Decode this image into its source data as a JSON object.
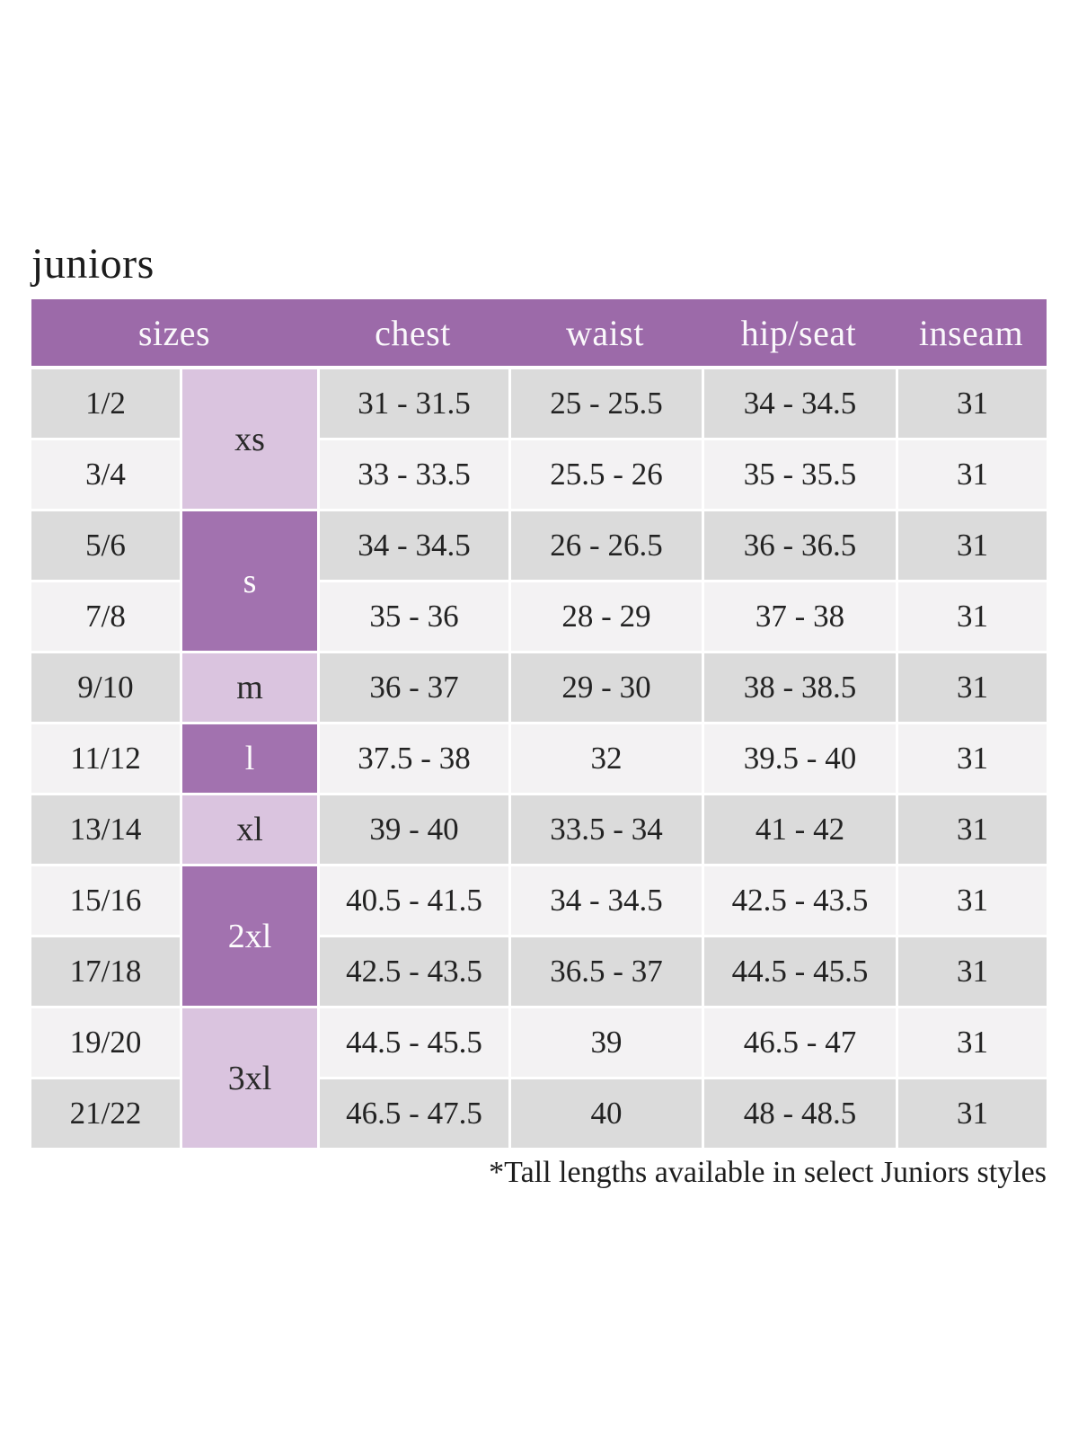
{
  "page": {
    "title": "juniors",
    "footnote": "*Tall lengths available in select Juniors styles"
  },
  "table": {
    "headers": [
      "sizes",
      "chest",
      "waist",
      "hip/seat",
      "inseam"
    ],
    "size_groups": [
      {
        "label": "xs",
        "span": 2,
        "shade": "light"
      },
      {
        "label": "s",
        "span": 2,
        "shade": "dark"
      },
      {
        "label": "m",
        "span": 1,
        "shade": "light"
      },
      {
        "label": "l",
        "span": 1,
        "shade": "dark"
      },
      {
        "label": "xl",
        "span": 1,
        "shade": "light"
      },
      {
        "label": "2xl",
        "span": 2,
        "shade": "dark"
      },
      {
        "label": "3xl",
        "span": 2,
        "shade": "light"
      }
    ],
    "rows": [
      {
        "sizes": "1/2",
        "chest": "31 - 31.5",
        "waist": "25 - 25.5",
        "hip_seat": "34 - 34.5",
        "inseam": "31"
      },
      {
        "sizes": "3/4",
        "chest": "33 - 33.5",
        "waist": "25.5 - 26",
        "hip_seat": "35 - 35.5",
        "inseam": "31"
      },
      {
        "sizes": "5/6",
        "chest": "34 - 34.5",
        "waist": "26 - 26.5",
        "hip_seat": "36 - 36.5",
        "inseam": "31"
      },
      {
        "sizes": "7/8",
        "chest": "35 - 36",
        "waist": "28 - 29",
        "hip_seat": "37 - 38",
        "inseam": "31"
      },
      {
        "sizes": "9/10",
        "chest": "36 - 37",
        "waist": "29 - 30",
        "hip_seat": "38 - 38.5",
        "inseam": "31"
      },
      {
        "sizes": "11/12",
        "chest": "37.5 - 38",
        "waist": "32",
        "hip_seat": "39.5 - 40",
        "inseam": "31"
      },
      {
        "sizes": "13/14",
        "chest": "39 - 40",
        "waist": "33.5 - 34",
        "hip_seat": "41 - 42",
        "inseam": "31"
      },
      {
        "sizes": "15/16",
        "chest": "40.5 - 41.5",
        "waist": "34 - 34.5",
        "hip_seat": "42.5 - 43.5",
        "inseam": "31"
      },
      {
        "sizes": "17/18",
        "chest": "42.5 - 43.5",
        "waist": "36.5 - 37",
        "hip_seat": "44.5 - 45.5",
        "inseam": "31"
      },
      {
        "sizes": "19/20",
        "chest": "44.5 - 45.5",
        "waist": "39",
        "hip_seat": "46.5 - 47",
        "inseam": "31"
      },
      {
        "sizes": "21/22",
        "chest": "46.5 - 47.5",
        "waist": "40",
        "hip_seat": "48 - 48.5",
        "inseam": "31"
      }
    ]
  },
  "colors": {
    "header_purple": "#9c6aa9",
    "group_dark_purple": "#a272af",
    "group_light_purple": "#dac4df",
    "row_dark_gray": "#dbdbdb",
    "row_light_gray": "#f3f2f3",
    "header_text": "#faf8fb",
    "body_text": "#222222",
    "background": "#ffffff"
  }
}
